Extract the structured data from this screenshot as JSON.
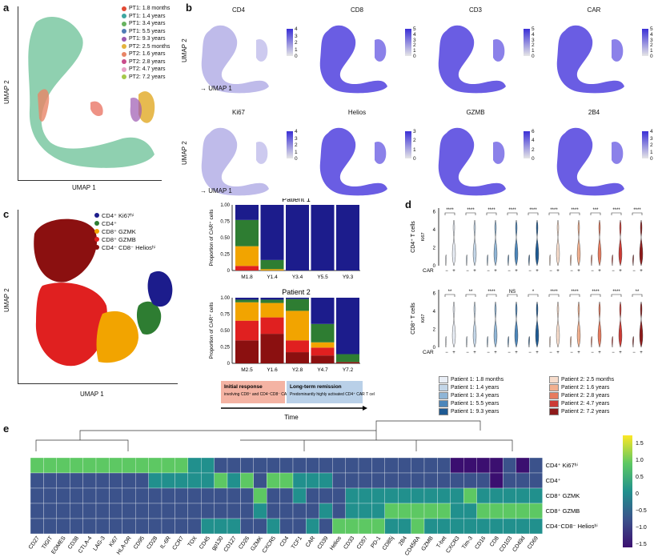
{
  "panels": {
    "a": "a",
    "b": "b",
    "c": "c",
    "d": "d",
    "e": "e"
  },
  "panel_a": {
    "xlabel": "UMAP 1",
    "ylabel": "UMAP 2",
    "legend": [
      {
        "label": "PT1: 1.8 months",
        "color": "#e24a33"
      },
      {
        "label": "PT1: 1.4 years",
        "color": "#3fa6a0"
      },
      {
        "label": "PT1: 3.4 years",
        "color": "#67b35f"
      },
      {
        "label": "PT1: 5.5 years",
        "color": "#4f7cb5"
      },
      {
        "label": "PT1: 9.3 years",
        "color": "#9c59b0"
      },
      {
        "label": "PT2: 2.5 months",
        "color": "#e4b33d"
      },
      {
        "label": "PT2: 1.6 years",
        "color": "#e88566"
      },
      {
        "label": "PT2: 2.8 years",
        "color": "#c94c8b"
      },
      {
        "label": "PT2: 4.7 years",
        "color": "#e7a0c6"
      },
      {
        "label": "PT2: 7.2 years",
        "color": "#a5c94a"
      }
    ]
  },
  "panel_b": {
    "xlabel": "UMAP 1",
    "ylabel": "UMAP 2",
    "plots": [
      {
        "title": "CD4",
        "ticks": [
          "4",
          "3",
          "2",
          "1",
          "0"
        ]
      },
      {
        "title": "CD8",
        "ticks": [
          "5",
          "4",
          "3",
          "2",
          "1",
          "0"
        ]
      },
      {
        "title": "CD3",
        "ticks": [
          "5",
          "4",
          "3",
          "2",
          "1",
          "0"
        ]
      },
      {
        "title": "CAR",
        "ticks": [
          "5",
          "4",
          "3",
          "2",
          "1",
          "0"
        ]
      },
      {
        "title": "Ki67",
        "ticks": [
          "4",
          "3",
          "2",
          "1",
          "0"
        ]
      },
      {
        "title": "Helios",
        "ticks": [
          "3",
          "2",
          "1",
          "0"
        ]
      },
      {
        "title": "GZMB",
        "ticks": [
          "6",
          "4",
          "2",
          "0"
        ]
      },
      {
        "title": "2B4",
        "ticks": [
          "4",
          "3",
          "2",
          "1",
          "0"
        ]
      }
    ]
  },
  "panel_c": {
    "xlabel": "UMAP 1",
    "ylabel": "UMAP 2",
    "legend": [
      {
        "label": "CD4⁺ Ki67ʰⁱ",
        "color": "#1c1c8c"
      },
      {
        "label": "CD4⁺",
        "color": "#2e7d32"
      },
      {
        "label": "CD8⁺ GZMK",
        "color": "#f2a400"
      },
      {
        "label": "CD8⁺ GZMB",
        "color": "#e02020"
      },
      {
        "label": "CD4⁻ CD8⁻ Heliosʰⁱ",
        "color": "#8b1010"
      }
    ]
  },
  "stacked": {
    "ylabel": "Proportion of CAR⁺ cells",
    "yticks": [
      "0",
      "0.25",
      "0.50",
      "0.75",
      "1.00"
    ],
    "patient1": {
      "title": "Patient 1",
      "categories": [
        "M1.8",
        "Y1.4",
        "Y3.4",
        "Y5.5",
        "Y9.3"
      ]
    },
    "patient2": {
      "title": "Patient 2",
      "categories": [
        "M2.5",
        "Y1.6",
        "Y2.8",
        "Y4.7",
        "Y7.2"
      ]
    },
    "box1_title": "Initial response",
    "box1_text": "involving CD8⁺ and CD4⁻CD8⁻ CAR T cells",
    "box2_title": "Long-term remission",
    "box2_text": "Predominantly highly activated CD4⁺ CAR T cells",
    "time_label": "Time"
  },
  "panel_d": {
    "row1_ylabel": "CD4⁺ T cells",
    "row2_ylabel": "CD8⁺ T cells",
    "ki67": "Ki67",
    "car": "CAR",
    "row1_sig": [
      "****",
      "****",
      "****",
      "****",
      "****",
      "****",
      "****",
      "***",
      "****",
      "****"
    ],
    "row2_sig": [
      "**",
      "**",
      "****",
      "NS",
      "*",
      "****",
      "****",
      "****",
      "****",
      "**"
    ],
    "yticks": [
      "0",
      "2",
      "4",
      "6"
    ],
    "legend": [
      {
        "label": "Patient 1: 1.8 months",
        "color": "#e9eef6"
      },
      {
        "label": "Patient 1: 1.4 years",
        "color": "#c3d6e8"
      },
      {
        "label": "Patient 1: 3.4 years",
        "color": "#8fb5d6"
      },
      {
        "label": "Patient 1: 5.5 years",
        "color": "#4c86ba"
      },
      {
        "label": "Patient 1: 9.3 years",
        "color": "#1e5a93"
      },
      {
        "label": "Patient 2: 2.5 months",
        "color": "#f7dccb"
      },
      {
        "label": "Patient 2: 1.6 years",
        "color": "#f2b08f"
      },
      {
        "label": "Patient 2: 2.8 years",
        "color": "#e77b5e"
      },
      {
        "label": "Patient 2: 4.7 years",
        "color": "#cc3b35"
      },
      {
        "label": "Patient 2: 7.2 years",
        "color": "#8e1a1a"
      }
    ]
  },
  "heatmap": {
    "rows": [
      "CD4⁺ Ki67ʰⁱ",
      "CD4⁺",
      "CD8⁺ GZMK",
      "CD8⁺ GZMB",
      "CD4⁻CD8⁻ Heliosʰⁱ"
    ],
    "cols": [
      "CD27",
      "TIGIT",
      "EOMES",
      "CD38",
      "CTLA-4",
      "LAG-3",
      "Ki67",
      "HLA-DR",
      "CD95",
      "CD28",
      "IL-6R",
      "CCR7",
      "TOX",
      "CD45",
      "gp130",
      "CD127",
      "CD26",
      "GZMK",
      "CXCR5",
      "CD4",
      "TCF1",
      "CAR",
      "CD39",
      "Helios",
      "CD33",
      "CD57",
      "PD-1",
      "CD85j",
      "2B4",
      "CD45RA",
      "GZMB",
      "T-bet",
      "CXCR3",
      "Tim-3",
      "CD16",
      "CD8",
      "CD103",
      "CD49d",
      "CD69"
    ],
    "colorbar_ticks": [
      "1.5",
      "1.0",
      "0.5",
      "0",
      "−0.5",
      "−1.0",
      "−1.5"
    ]
  }
}
